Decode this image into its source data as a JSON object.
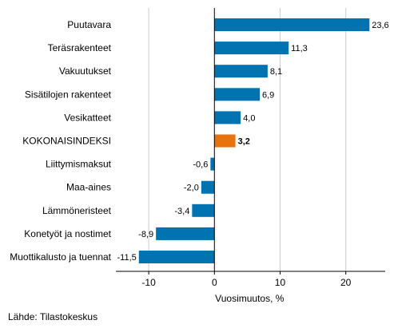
{
  "chart_data": {
    "type": "bar",
    "orientation": "horizontal",
    "categories": [
      "Puutavara",
      "Teräsrakenteet",
      "Vakuutukset",
      "Sisätilojen rakenteet",
      "Vesikatteet",
      "KOKONAISINDEKSI",
      "Liittymismaksut",
      "Maa-aines",
      "Lämmöneristeet",
      "Konetyöt ja nostimet",
      "Muottikalusto ja tuennat"
    ],
    "values": [
      23.6,
      11.3,
      8.1,
      6.9,
      4.0,
      3.2,
      -0.6,
      -2.0,
      -3.4,
      -8.9,
      -11.5
    ],
    "value_labels": [
      "23,6",
      "11,3",
      "8,1",
      "6,9",
      "4,0",
      "3,2",
      "-0,6",
      "-2,0",
      "-3,4",
      "-8,9",
      "-11,5"
    ],
    "highlight_category": "KOKONAISINDEKSI",
    "xlabel": "Vuosimuutos, %",
    "xlim": [
      -15,
      26
    ],
    "xticks": [
      -10,
      0,
      10,
      20
    ],
    "xtick_labels": [
      "-10",
      "0",
      "10",
      "20"
    ],
    "grid": "vertical",
    "colors": {
      "bar": "#0073b0",
      "highlight": "#e8720c",
      "grid": "#cccccc"
    }
  },
  "footer": {
    "source": "Lähde: Tilastokeskus"
  }
}
